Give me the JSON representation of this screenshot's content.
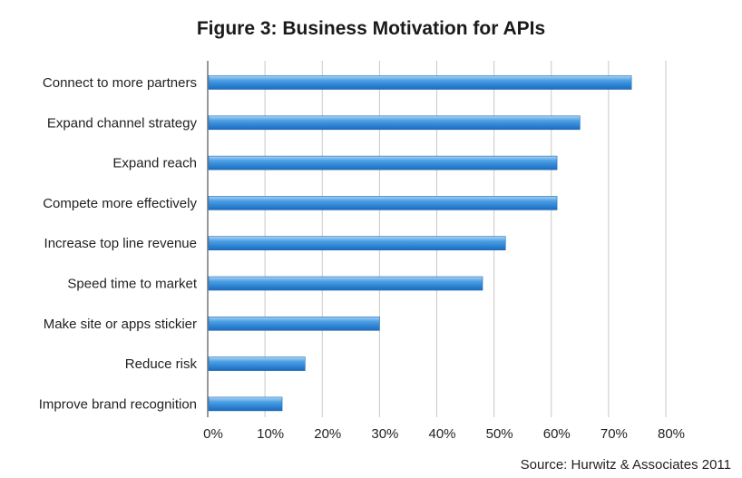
{
  "chart_data": {
    "type": "bar",
    "orientation": "horizontal",
    "title": "Figure 3:  Business Motivation for APIs",
    "categories": [
      "Connect to more partners",
      "Expand channel strategy",
      "Expand reach",
      "Compete more effectively",
      "Increase top line revenue",
      "Speed time to market",
      "Make site or apps stickier",
      "Reduce risk",
      "Improve brand recognition"
    ],
    "values": [
      74,
      65,
      61,
      61,
      52,
      48,
      30,
      17,
      13
    ],
    "xlim": [
      0,
      80
    ],
    "x_ticks": [
      "0%",
      "10%",
      "20%",
      "30%",
      "40%",
      "50%",
      "60%",
      "70%",
      "80%"
    ],
    "grid": true,
    "bar_color": "#3a8fd8"
  },
  "source": "Source: Hurwitz & Associates 2011"
}
